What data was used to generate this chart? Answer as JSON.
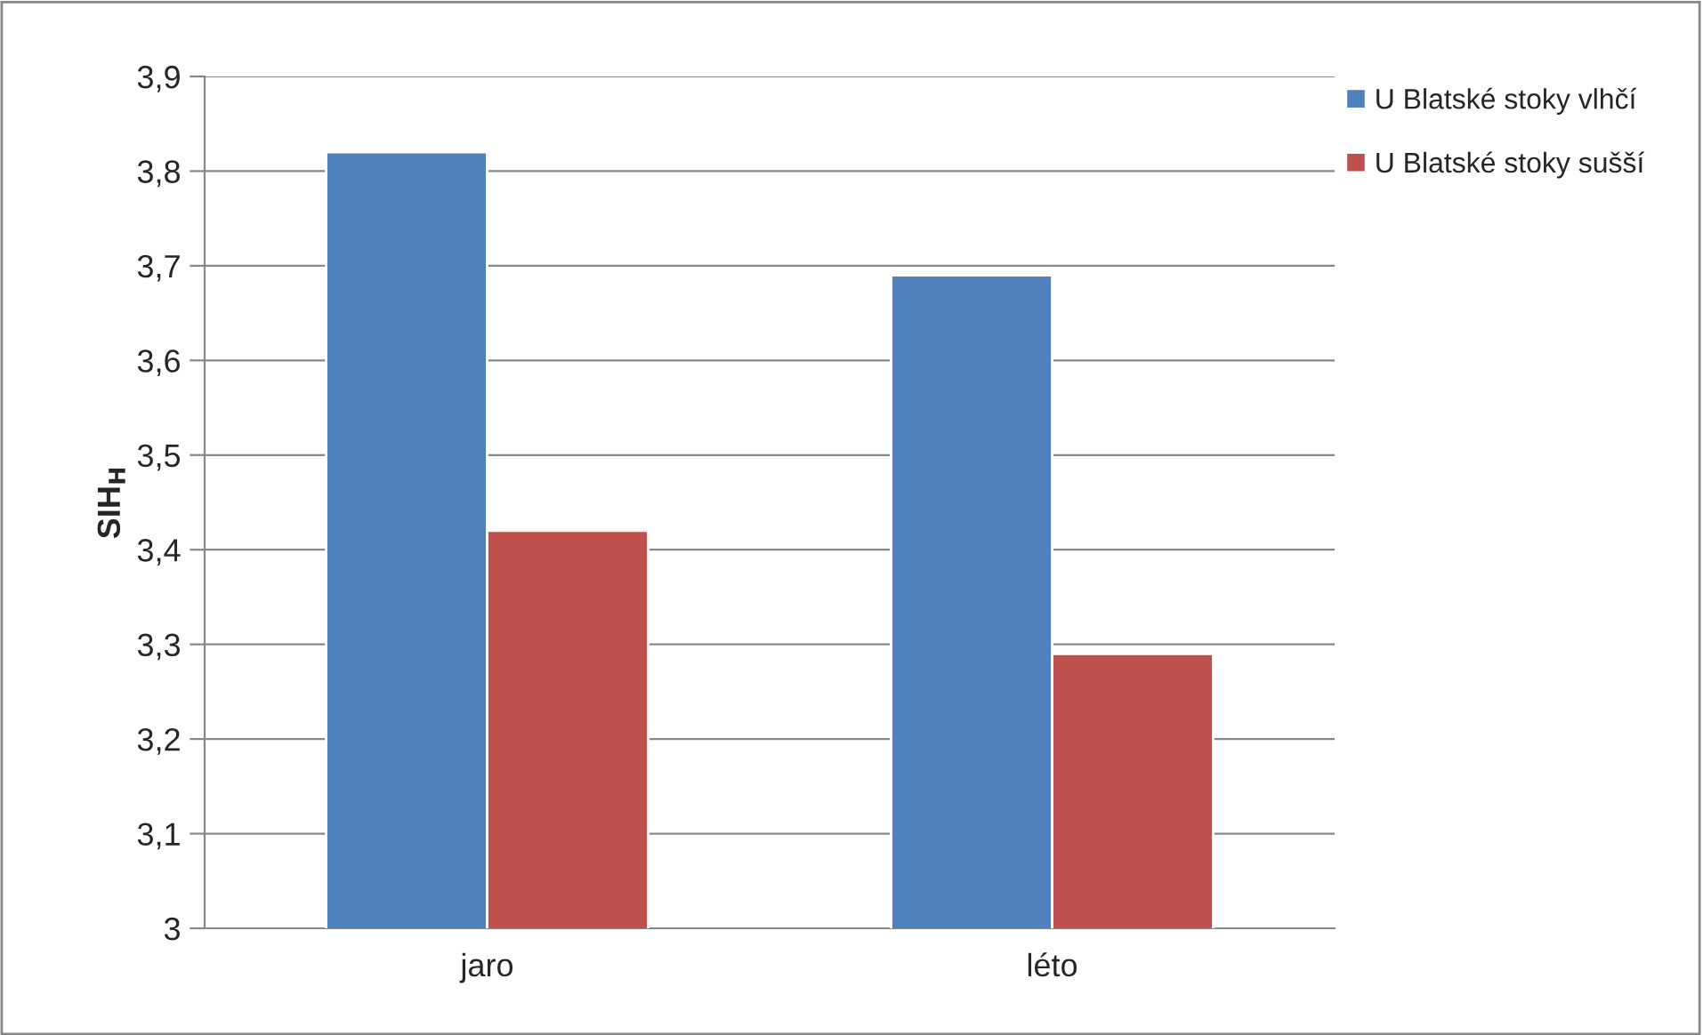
{
  "chart_data": {
    "type": "bar",
    "ylabel": "SIH$_{H}$",
    "categories": [
      "jaro",
      "léto"
    ],
    "series": [
      {
        "name": "U Blatské stoky vlhčí",
        "color": "#4f81bd",
        "values": [
          3.82,
          3.69
        ]
      },
      {
        "name": "U Blatské stoky sušší",
        "color": "#c0504d",
        "values": [
          3.42,
          3.29
        ]
      }
    ],
    "ylim": [
      3,
      3.9
    ],
    "yticks": [
      3,
      {
        "value": 3.1,
        "label": "3,1"
      },
      {
        "value": 3.2,
        "label": "3,2"
      },
      {
        "value": 3.3,
        "label": "3,3"
      },
      {
        "value": 3.4,
        "label": "3,4"
      },
      {
        "value": 3.5,
        "label": "3,5"
      },
      {
        "value": 3.6,
        "label": "3,6"
      },
      {
        "value": 3.7,
        "label": "3,7"
      },
      {
        "value": 3.8,
        "label": "3,8"
      },
      {
        "value": 3.9,
        "label": "3,9"
      }
    ],
    "grid": "y",
    "legend": "right"
  }
}
